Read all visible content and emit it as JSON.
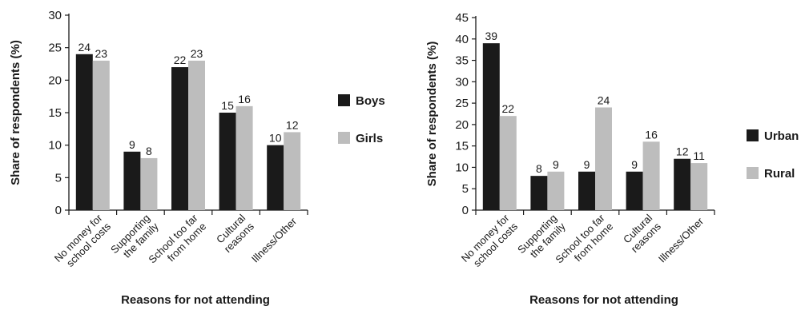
{
  "charts": [
    {
      "type": "bar",
      "categories": [
        [
          "No money for",
          "school costs"
        ],
        [
          "Supporting",
          "the family"
        ],
        [
          "School too far",
          "from home"
        ],
        [
          "Cultural",
          "reasons"
        ],
        [
          "Illness/Other"
        ]
      ],
      "series": [
        {
          "name": "Boys",
          "color": "#1a1a1a",
          "values": [
            24,
            9,
            22,
            15,
            10
          ]
        },
        {
          "name": "Girls",
          "color": "#bdbdbd",
          "values": [
            23,
            8,
            23,
            16,
            12
          ]
        }
      ],
      "ylim": [
        0,
        30
      ],
      "yticks": [
        0,
        5,
        10,
        15,
        20,
        25,
        30
      ],
      "ylabel": "Share of respondents (%)",
      "xlabel": "Reasons for not attending",
      "legend_position": "right"
    },
    {
      "type": "bar",
      "categories": [
        [
          "No money for",
          "school costs"
        ],
        [
          "Supporting",
          "the family"
        ],
        [
          "School too far",
          "from home"
        ],
        [
          "Cultural",
          "reasons"
        ],
        [
          "Illness/Other"
        ]
      ],
      "series": [
        {
          "name": "Urban",
          "color": "#1a1a1a",
          "values": [
            39,
            8,
            9,
            9,
            12
          ]
        },
        {
          "name": "Rural",
          "color": "#bdbdbd",
          "values": [
            22,
            9,
            24,
            16,
            11
          ]
        }
      ],
      "ylim": [
        0,
        45
      ],
      "yticks": [
        0,
        5,
        10,
        15,
        20,
        25,
        30,
        35,
        40,
        45
      ],
      "ylabel": "Share of respondents (%)",
      "xlabel": "Reasons for not attending",
      "legend_position": "right"
    }
  ]
}
